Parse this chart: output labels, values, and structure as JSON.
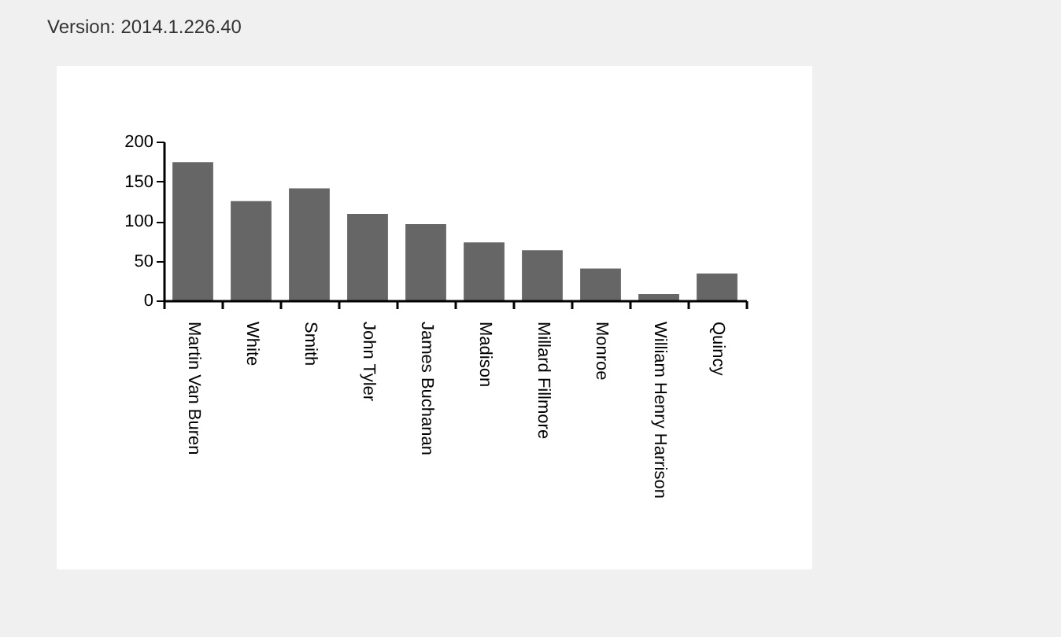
{
  "chart_data": {
    "type": "bar",
    "title": "Version: 2014.1.226.40",
    "categories": [
      "Martin Van Buren",
      "White",
      "Smith",
      "John Tyler",
      "James Buchanan",
      "Madison",
      "Millard Fillmore",
      "Monroe",
      "William Henry Harrison",
      "Quincy"
    ],
    "values": [
      174,
      125,
      141,
      109,
      96,
      73,
      63,
      40,
      8,
      34
    ],
    "color": "#666666",
    "ylim": [
      0,
      200
    ],
    "yticks": [
      0,
      50,
      100,
      150,
      200
    ],
    "grid": false
  }
}
